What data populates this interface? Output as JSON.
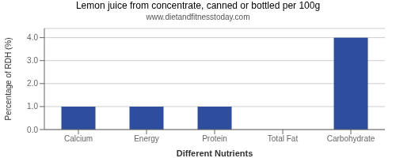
{
  "chart_data": {
    "type": "bar",
    "title": "Lemon juice from concentrate, canned or bottled per 100g",
    "subtitle": "www.dietandfitnesstoday.com",
    "xlabel": "Different Nutrients",
    "ylabel": "Percentage of RDH (%)",
    "categories": [
      "Calcium",
      "Energy",
      "Protein",
      "Total Fat",
      "Carbohydrate"
    ],
    "values": [
      1.0,
      1.0,
      1.0,
      0.0,
      4.0
    ],
    "color": "#2e4d9e",
    "ylim": [
      0,
      4.4
    ],
    "yticks": [
      {
        "value": 0,
        "label": "0.0"
      },
      {
        "value": 1,
        "label": "1.0"
      },
      {
        "value": 2,
        "label": "2.0"
      },
      {
        "value": 3,
        "label": "3.0"
      },
      {
        "value": 4,
        "label": "4.0"
      }
    ],
    "grid": true
  }
}
